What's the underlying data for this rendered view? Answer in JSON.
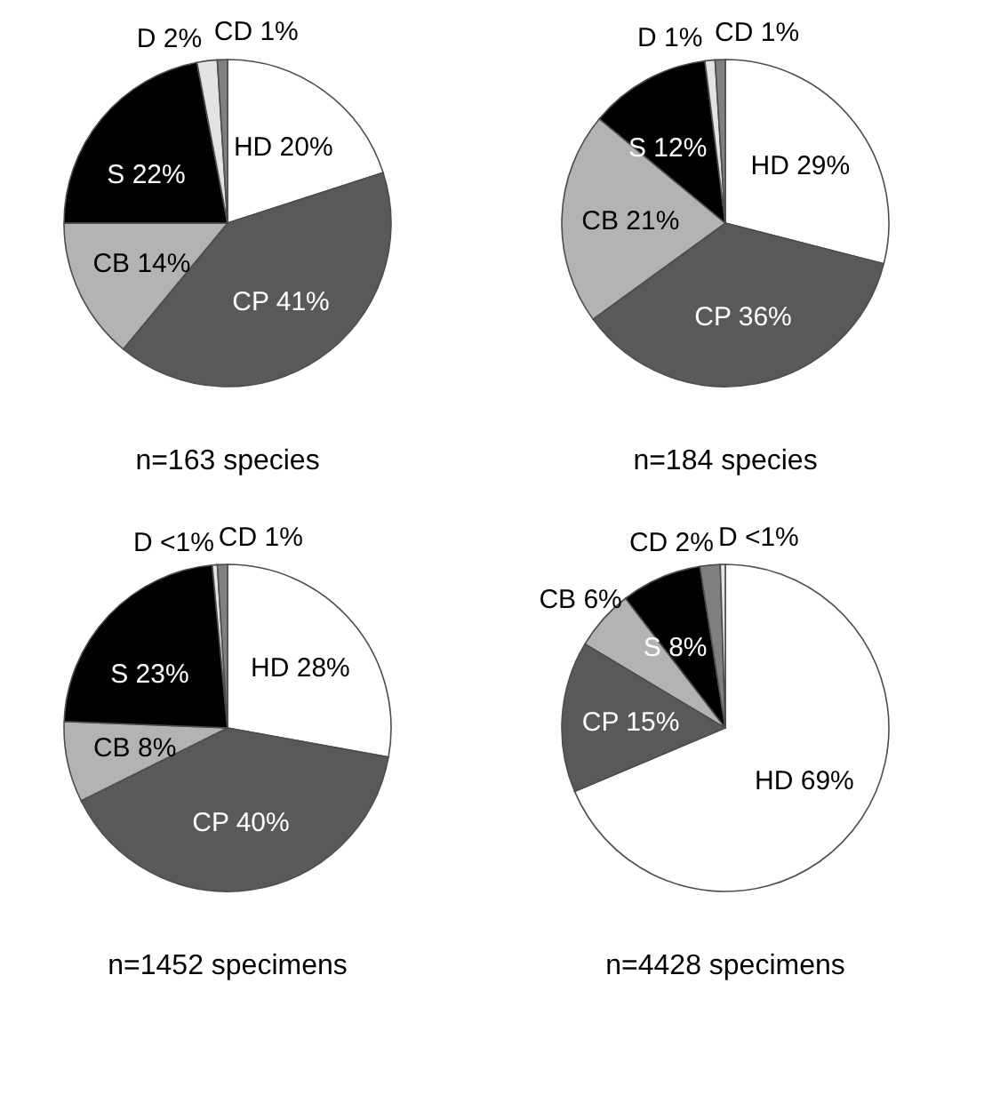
{
  "chart_data": [
    {
      "type": "pie",
      "title": "n=163 species",
      "legend": false,
      "categories": [
        "HD",
        "CP",
        "CB",
        "S",
        "D",
        "CD"
      ],
      "values": [
        20,
        41,
        14,
        22,
        2,
        1
      ],
      "value_labels": [
        "20%",
        "41%",
        "14%",
        "22%",
        "2%",
        "1%"
      ],
      "colors": [
        "#ffffff",
        "#595959",
        "#b3b3b3",
        "#000000",
        "#e3e3e3",
        "#808080"
      ]
    },
    {
      "type": "pie",
      "title": "n=184 species",
      "legend": false,
      "categories": [
        "HD",
        "CP",
        "CB",
        "S",
        "D",
        "CD"
      ],
      "values": [
        29,
        36,
        21,
        12,
        1,
        1
      ],
      "value_labels": [
        "29%",
        "36%",
        "21%",
        "12%",
        "1%",
        "1%"
      ],
      "colors": [
        "#ffffff",
        "#595959",
        "#b3b3b3",
        "#000000",
        "#e3e3e3",
        "#808080"
      ]
    },
    {
      "type": "pie",
      "title": "n=1452 specimens",
      "legend": false,
      "categories": [
        "HD",
        "CP",
        "CB",
        "S",
        "D",
        "CD"
      ],
      "values": [
        28,
        40,
        8,
        23,
        0.5,
        1
      ],
      "value_labels": [
        "28%",
        "40%",
        "8%",
        "23%",
        "<1%",
        "1%"
      ],
      "colors": [
        "#ffffff",
        "#595959",
        "#b3b3b3",
        "#000000",
        "#e3e3e3",
        "#808080"
      ]
    },
    {
      "type": "pie",
      "title": "n=4428 specimens",
      "legend": false,
      "categories": [
        "HD",
        "CP",
        "CB",
        "S",
        "CD",
        "D"
      ],
      "values": [
        69,
        15,
        6,
        8,
        2,
        0.5
      ],
      "value_labels": [
        "69%",
        "15%",
        "6%",
        "8%",
        "2%",
        "<1%"
      ],
      "colors": [
        "#ffffff",
        "#595959",
        "#b3b3b3",
        "#000000",
        "#808080",
        "#e3e3e3"
      ]
    }
  ]
}
